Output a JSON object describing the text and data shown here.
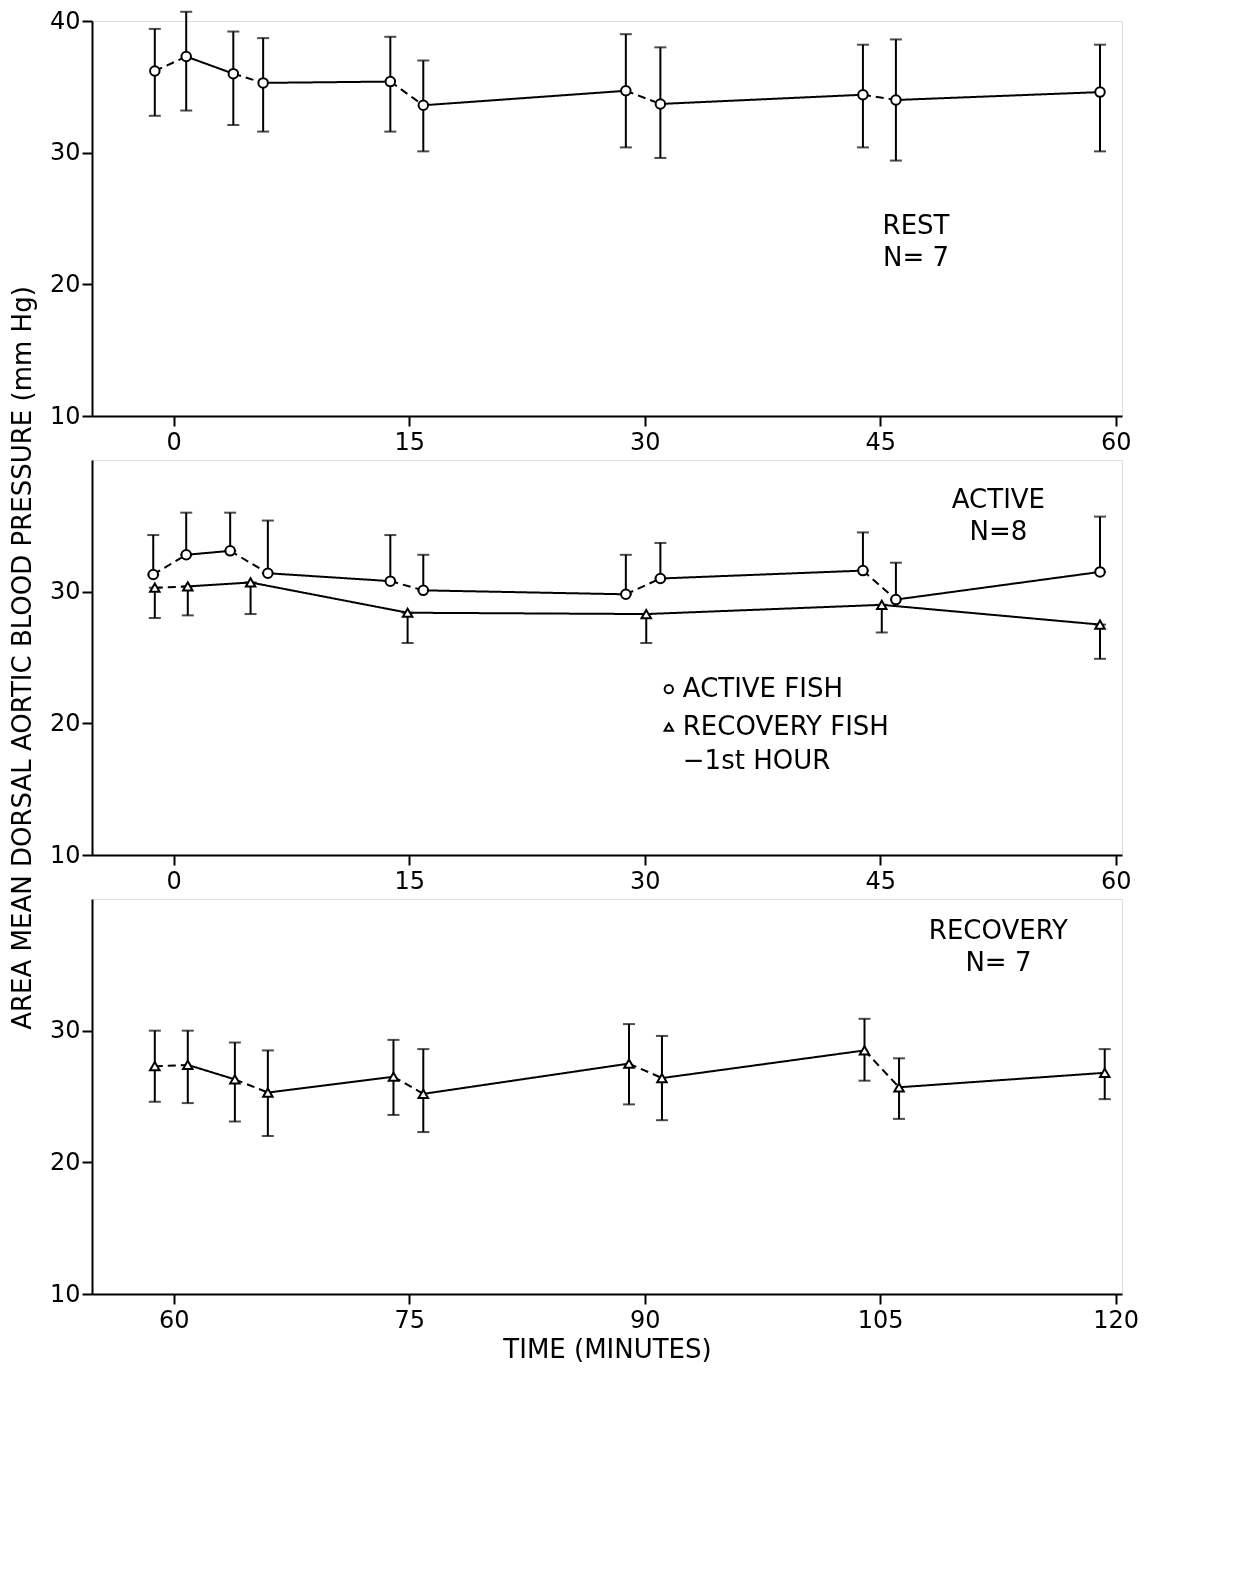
{
  "chart_data": [
    {
      "type": "line",
      "xlim": [
        -5.2,
        60.4
      ],
      "xticks": [
        0,
        15,
        30,
        45,
        60
      ],
      "ylim": [
        10,
        40
      ],
      "yticks": [
        10,
        20,
        30,
        40
      ],
      "grid": false,
      "annotations": [
        "REST",
        "N= 7"
      ],
      "series": [
        {
          "color": "#000000",
          "marker": "circle",
          "line_style": [
            "dashed",
            "solid",
            "dashed",
            "solid",
            "dashed",
            "solid",
            "dashed",
            "solid",
            "dashed",
            "solid"
          ],
          "x": [
            -1.2,
            0.8,
            3.8,
            5.7,
            13.8,
            15.9,
            28.8,
            31.0,
            43.9,
            46.0,
            59.0
          ],
          "values": [
            36.2,
            37.3,
            36.0,
            35.3,
            35.4,
            33.6,
            34.7,
            33.7,
            34.4,
            34.0,
            34.6
          ],
          "errors": [
            [
              32.8,
              39.4
            ],
            [
              33.2,
              40.7
            ],
            [
              32.1,
              39.2
            ],
            [
              31.6,
              38.7
            ],
            [
              31.6,
              38.8
            ],
            [
              30.1,
              37.0
            ],
            [
              30.4,
              39.0
            ],
            [
              29.6,
              38.0
            ],
            [
              30.4,
              38.2
            ],
            [
              29.4,
              38.6
            ],
            [
              30.1,
              38.2
            ]
          ]
        }
      ]
    },
    {
      "type": "line",
      "xlim": [
        -5.2,
        60.4
      ],
      "xticks": [
        0,
        15,
        30,
        45,
        60
      ],
      "ylim": [
        10,
        40
      ],
      "yticks": [
        10,
        20,
        30
      ],
      "grid": false,
      "ylabel": "AREA MEAN DORSAL AORTIC BLOOD PRESSURE (mm Hg)",
      "annotations": [
        "ACTIVE",
        "N=8"
      ],
      "legend": "center",
      "series": [
        {
          "name": "ACTIVE FISH",
          "color": "#000000",
          "marker": "circle",
          "line_style": [
            "dashed",
            "solid",
            "dashed",
            "solid",
            "dashed",
            "solid",
            "dashed",
            "solid",
            "dashed",
            "solid"
          ],
          "x": [
            -1.3,
            0.8,
            3.6,
            6.0,
            13.8,
            15.9,
            28.8,
            31.0,
            43.9,
            46.0,
            59.0
          ],
          "values": [
            31.3,
            32.8,
            33.1,
            31.4,
            30.8,
            30.1,
            29.8,
            31.0,
            31.6,
            29.4,
            31.5
          ],
          "errors": [
            [
              31.3,
              34.3
            ],
            [
              32.8,
              36.0
            ],
            [
              33.1,
              36.0
            ],
            [
              31.4,
              35.4
            ],
            [
              30.8,
              34.3
            ],
            [
              30.1,
              32.8
            ],
            [
              29.8,
              32.8
            ],
            [
              31.0,
              33.7
            ],
            [
              31.6,
              34.5
            ],
            [
              29.4,
              32.2
            ],
            [
              31.5,
              35.7
            ]
          ]
        },
        {
          "name": "RECOVERY FISH\n−1st HOUR",
          "color": "#000000",
          "marker": "triangle",
          "line_style": [
            "dashed",
            "solid",
            "solid",
            "solid",
            "solid",
            "solid"
          ],
          "x": [
            -1.2,
            0.9,
            4.9,
            14.9,
            30.1,
            45.1,
            59.0
          ],
          "values": [
            30.3,
            30.4,
            30.7,
            28.4,
            28.3,
            29.0,
            27.5
          ],
          "errors": [
            [
              28.0,
              30.3
            ],
            [
              28.2,
              30.4
            ],
            [
              28.3,
              30.7
            ],
            [
              26.1,
              28.4
            ],
            [
              26.1,
              28.3
            ],
            [
              26.9,
              29.0
            ],
            [
              24.9,
              27.5
            ]
          ]
        }
      ]
    },
    {
      "type": "line",
      "xlim": [
        54.8,
        120.4
      ],
      "xticks": [
        60,
        75,
        90,
        105,
        120
      ],
      "ylim": [
        10,
        40
      ],
      "yticks": [
        10,
        20,
        30
      ],
      "grid": false,
      "xlabel": "TIME (MINUTES)",
      "annotations": [
        "RECOVERY",
        "N= 7"
      ],
      "series": [
        {
          "color": "#000000",
          "marker": "triangle",
          "line_style": [
            "dashed",
            "solid",
            "dashed",
            "solid",
            "dashed",
            "solid",
            "dashed",
            "solid",
            "dashed",
            "solid"
          ],
          "x": [
            58.8,
            60.9,
            63.9,
            66.0,
            74.0,
            75.9,
            89.0,
            91.1,
            104.0,
            106.2,
            119.3
          ],
          "values": [
            27.3,
            27.4,
            26.3,
            25.3,
            26.5,
            25.2,
            27.5,
            26.4,
            28.5,
            25.7,
            26.8
          ],
          "errors": [
            [
              24.6,
              30.0
            ],
            [
              24.5,
              30.0
            ],
            [
              23.1,
              29.1
            ],
            [
              22.0,
              28.5
            ],
            [
              23.6,
              29.3
            ],
            [
              22.3,
              28.6
            ],
            [
              24.4,
              30.5
            ],
            [
              23.2,
              29.6
            ],
            [
              26.2,
              30.9
            ],
            [
              23.3,
              27.9
            ],
            [
              24.8,
              28.6
            ]
          ]
        }
      ]
    }
  ]
}
